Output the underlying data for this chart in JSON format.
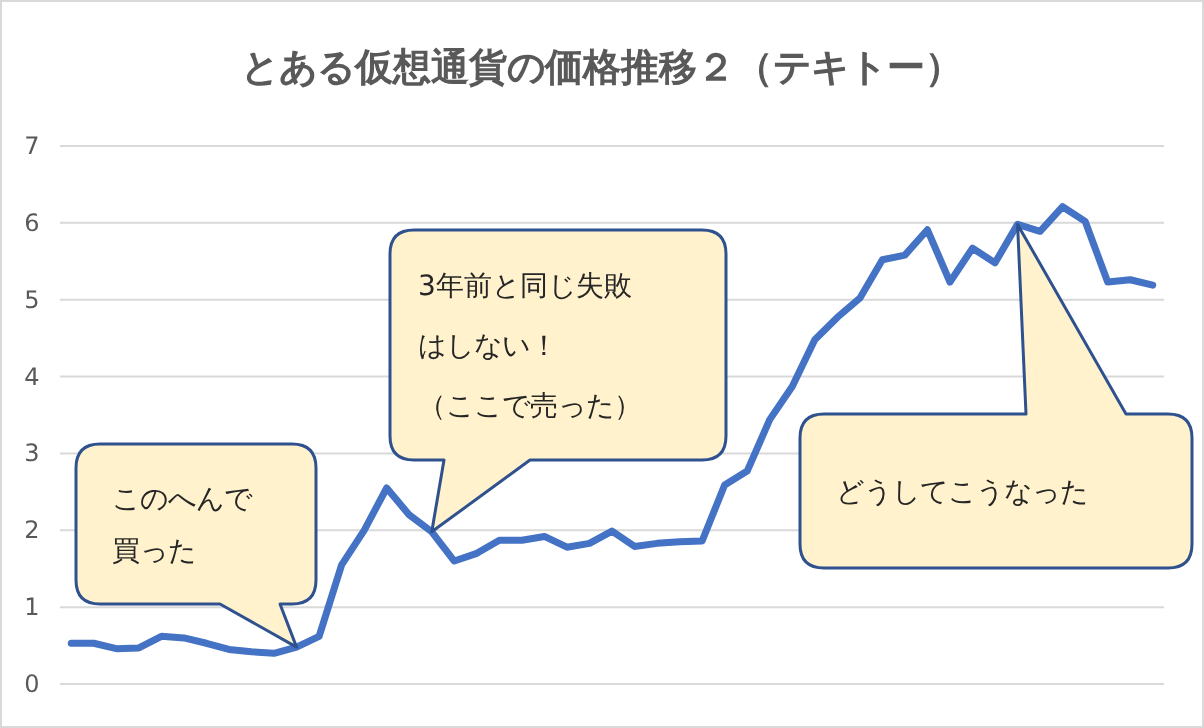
{
  "chart_data": {
    "type": "line",
    "title": "とある仮想通貨の価格推移２（テキトー）",
    "categories": [
      null,
      null,
      null,
      null,
      null,
      null,
      null,
      null,
      null,
      null,
      null,
      null,
      null,
      null,
      null,
      null,
      null,
      null,
      null,
      null,
      null,
      null,
      null,
      null,
      null,
      null,
      null,
      null,
      null,
      null,
      null,
      null,
      null,
      null,
      null,
      null,
      null,
      null,
      null,
      null,
      null,
      null,
      null,
      null,
      null,
      null,
      null,
      null,
      null
    ],
    "series": [
      {
        "color": "#4472c4",
        "values": [
          0.53,
          0.53,
          0.46,
          0.47,
          0.62,
          0.6,
          0.53,
          0.45,
          0.42,
          0.4,
          0.48,
          0.62,
          1.55,
          2.0,
          2.55,
          2.2,
          1.98,
          1.6,
          1.7,
          1.87,
          1.87,
          1.92,
          1.78,
          1.83,
          1.99,
          1.79,
          1.83,
          1.85,
          1.86,
          2.59,
          2.77,
          3.44,
          3.87,
          4.48,
          4.77,
          5.02,
          5.52,
          5.58,
          5.91,
          5.23,
          5.67,
          5.48,
          5.98,
          5.89,
          6.21,
          6.02,
          5.23,
          5.26,
          5.19
        ]
      }
    ],
    "ylim": [
      0,
      7
    ],
    "yticks": [
      0,
      1,
      2,
      3,
      4,
      5,
      6,
      7
    ],
    "grid": "y",
    "marker": "none",
    "line_style": "solid",
    "annotations": [
      "このへんで買った",
      "3年前と同じ失敗はしない！（ここで売った）",
      "どうしてこうなった"
    ]
  }
}
